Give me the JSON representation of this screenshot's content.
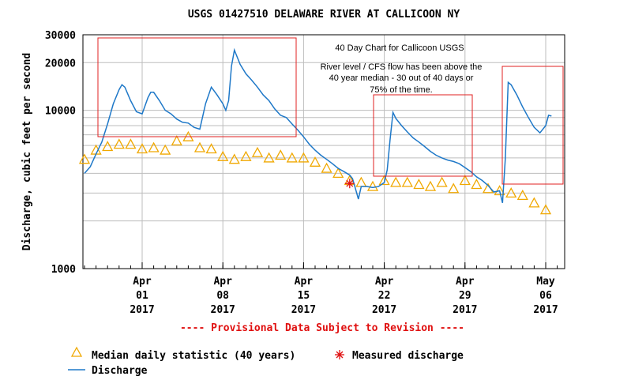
{
  "chart_data": {
    "type": "line",
    "title": "USGS 01427510 DELAWARE RIVER AT CALLICOON NY",
    "ylabel": "Discharge, cubic feet per second",
    "xlabel": "",
    "y_scale": "log",
    "ylim": [
      1000,
      30000
    ],
    "xlim": [
      "2017-03-27",
      "2017-05-07"
    ],
    "grid": true,
    "y_ticks": [
      {
        "value": 1000,
        "label": "1000"
      },
      {
        "value": 10000,
        "label": "10000"
      },
      {
        "value": 20000,
        "label": "20000"
      },
      {
        "value": 30000,
        "label": "30000"
      }
    ],
    "x_ticks": [
      {
        "date": "2017-04-01",
        "line1": "Apr",
        "line2": "01",
        "line3": "2017"
      },
      {
        "date": "2017-04-08",
        "line1": "Apr",
        "line2": "08",
        "line3": "2017"
      },
      {
        "date": "2017-04-15",
        "line1": "Apr",
        "line2": "15",
        "line3": "2017"
      },
      {
        "date": "2017-04-22",
        "line1": "Apr",
        "line2": "22",
        "line3": "2017"
      },
      {
        "date": "2017-04-29",
        "line1": "Apr",
        "line2": "29",
        "line3": "2017"
      },
      {
        "date": "2017-05-06",
        "line1": "May",
        "line2": "06",
        "line3": "2017"
      }
    ],
    "series": [
      {
        "name": "Discharge",
        "color": "#1e78c8",
        "points": [
          [
            "2017-03-27",
            4000
          ],
          [
            "2017-03-27T12",
            4400
          ],
          [
            "2017-03-28",
            5300
          ],
          [
            "2017-03-28T12",
            6300
          ],
          [
            "2017-03-29",
            8200
          ],
          [
            "2017-03-29T12",
            11000
          ],
          [
            "2017-03-30",
            13500
          ],
          [
            "2017-03-30T06",
            14500
          ],
          [
            "2017-03-30T12",
            14000
          ],
          [
            "2017-03-31",
            11500
          ],
          [
            "2017-03-31T12",
            9800
          ],
          [
            "2017-04-01",
            9500
          ],
          [
            "2017-04-01T12",
            12000
          ],
          [
            "2017-04-01T18",
            13000
          ],
          [
            "2017-04-02",
            13000
          ],
          [
            "2017-04-02T12",
            11500
          ],
          [
            "2017-04-03",
            10000
          ],
          [
            "2017-04-03T12",
            9500
          ],
          [
            "2017-04-04",
            8800
          ],
          [
            "2017-04-04T12",
            8400
          ],
          [
            "2017-04-05",
            8300
          ],
          [
            "2017-04-05T12",
            7800
          ],
          [
            "2017-04-06",
            7600
          ],
          [
            "2017-04-06T12",
            11000
          ],
          [
            "2017-04-07",
            14000
          ],
          [
            "2017-04-07T12",
            12500
          ],
          [
            "2017-04-08",
            11000
          ],
          [
            "2017-04-08T06",
            10000
          ],
          [
            "2017-04-08T12",
            11500
          ],
          [
            "2017-04-08T18",
            19000
          ],
          [
            "2017-04-09",
            24000
          ],
          [
            "2017-04-09T12",
            19500
          ],
          [
            "2017-04-10",
            17000
          ],
          [
            "2017-04-10T12",
            15500
          ],
          [
            "2017-04-11",
            14000
          ],
          [
            "2017-04-11T12",
            12500
          ],
          [
            "2017-04-12",
            11500
          ],
          [
            "2017-04-12T12",
            10200
          ],
          [
            "2017-04-13",
            9300
          ],
          [
            "2017-04-13T12",
            9000
          ],
          [
            "2017-04-14",
            8200
          ],
          [
            "2017-04-14T12",
            7500
          ],
          [
            "2017-04-15",
            6800
          ],
          [
            "2017-04-15T12",
            6100
          ],
          [
            "2017-04-16",
            5600
          ],
          [
            "2017-04-16T12",
            5200
          ],
          [
            "2017-04-17",
            4900
          ],
          [
            "2017-04-17T12",
            4600
          ],
          [
            "2017-04-18",
            4300
          ],
          [
            "2017-04-18T12",
            4100
          ],
          [
            "2017-04-19",
            3900
          ],
          [
            "2017-04-19T06",
            3700
          ],
          [
            "2017-04-19T12",
            3200
          ],
          [
            "2017-04-19T18",
            2750
          ],
          [
            "2017-04-20",
            3300
          ],
          [
            "2017-04-20T12",
            3300
          ],
          [
            "2017-04-21",
            3250
          ],
          [
            "2017-04-21T12",
            3300
          ],
          [
            "2017-04-22",
            3500
          ],
          [
            "2017-04-22T06",
            4200
          ],
          [
            "2017-04-22T12",
            6500
          ],
          [
            "2017-04-22T18",
            9700
          ],
          [
            "2017-04-23",
            8900
          ],
          [
            "2017-04-23T12",
            8000
          ],
          [
            "2017-04-24",
            7300
          ],
          [
            "2017-04-24T12",
            6700
          ],
          [
            "2017-04-25",
            6300
          ],
          [
            "2017-04-25T12",
            5900
          ],
          [
            "2017-04-26",
            5500
          ],
          [
            "2017-04-26T12",
            5200
          ],
          [
            "2017-04-27",
            5000
          ],
          [
            "2017-04-27T12",
            4850
          ],
          [
            "2017-04-28",
            4750
          ],
          [
            "2017-04-28T12",
            4600
          ],
          [
            "2017-04-29",
            4350
          ],
          [
            "2017-04-29T12",
            4100
          ],
          [
            "2017-04-30",
            3800
          ],
          [
            "2017-04-30T12",
            3600
          ],
          [
            "2017-05-01",
            3350
          ],
          [
            "2017-05-01T12",
            3050
          ],
          [
            "2017-05-02",
            3100
          ],
          [
            "2017-05-02T06",
            2600
          ],
          [
            "2017-05-02T12",
            5000
          ],
          [
            "2017-05-02T18",
            15000
          ],
          [
            "2017-05-03",
            14500
          ],
          [
            "2017-05-03T12",
            12500
          ],
          [
            "2017-05-04",
            10500
          ],
          [
            "2017-05-04T12",
            9000
          ],
          [
            "2017-05-05",
            7800
          ],
          [
            "2017-05-05T12",
            7200
          ],
          [
            "2017-05-06",
            8000
          ],
          [
            "2017-05-06T06",
            9300
          ],
          [
            "2017-05-06T12",
            9200
          ]
        ]
      },
      {
        "name": "Median daily statistic (40 years)",
        "color": "#f0a800",
        "marker": "triangle",
        "points": [
          [
            "2017-03-27",
            4900
          ],
          [
            "2017-03-28",
            5600
          ],
          [
            "2017-03-29",
            5900
          ],
          [
            "2017-03-30",
            6100
          ],
          [
            "2017-03-31",
            6100
          ],
          [
            "2017-04-01",
            5700
          ],
          [
            "2017-04-02",
            5800
          ],
          [
            "2017-04-03",
            5600
          ],
          [
            "2017-04-04",
            6400
          ],
          [
            "2017-04-05",
            6800
          ],
          [
            "2017-04-06",
            5800
          ],
          [
            "2017-04-07",
            5700
          ],
          [
            "2017-04-08",
            5100
          ],
          [
            "2017-04-09",
            4900
          ],
          [
            "2017-04-10",
            5100
          ],
          [
            "2017-04-11",
            5400
          ],
          [
            "2017-04-12",
            5000
          ],
          [
            "2017-04-13",
            5200
          ],
          [
            "2017-04-14",
            5000
          ],
          [
            "2017-04-15",
            5000
          ],
          [
            "2017-04-16",
            4700
          ],
          [
            "2017-04-17",
            4300
          ],
          [
            "2017-04-18",
            4000
          ],
          [
            "2017-04-19",
            3600
          ],
          [
            "2017-04-20",
            3500
          ],
          [
            "2017-04-21",
            3300
          ],
          [
            "2017-04-22",
            3600
          ],
          [
            "2017-04-23",
            3500
          ],
          [
            "2017-04-24",
            3500
          ],
          [
            "2017-04-25",
            3400
          ],
          [
            "2017-04-26",
            3300
          ],
          [
            "2017-04-27",
            3500
          ],
          [
            "2017-04-28",
            3200
          ],
          [
            "2017-04-29",
            3600
          ],
          [
            "2017-04-30",
            3400
          ],
          [
            "2017-05-01",
            3200
          ],
          [
            "2017-05-02",
            3100
          ],
          [
            "2017-05-03",
            3000
          ],
          [
            "2017-05-04",
            2900
          ],
          [
            "2017-05-05",
            2600
          ],
          [
            "2017-05-06",
            2350
          ]
        ]
      },
      {
        "name": "Measured discharge",
        "color": "#e01010",
        "marker": "asterisk",
        "points": [
          [
            "2017-04-19",
            3450
          ]
        ]
      }
    ],
    "annotations": {
      "heading": "40 Day Chart for Callicoon USGS",
      "lines": [
        "River level / CFS flow has been above the",
        "40 year median - 30 out of 40 days or",
        "75% of the time."
      ],
      "box_color": "#e02020"
    },
    "provisional_note": "---- Provisional Data Subject to Revision ----",
    "legend": {
      "placement": "bottom-left",
      "items": [
        {
          "label": "Median daily statistic (40 years)",
          "symbol": "triangle"
        },
        {
          "label": "Measured discharge",
          "symbol": "asterisk"
        },
        {
          "label": "Discharge",
          "symbol": "line"
        }
      ]
    }
  }
}
